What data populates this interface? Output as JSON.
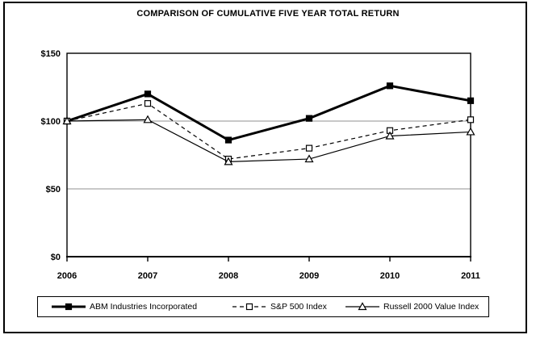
{
  "chart_data": {
    "type": "line",
    "title": "COMPARISON OF CUMULATIVE FIVE YEAR TOTAL RETURN",
    "x_labels": [
      "2006",
      "2007",
      "2008",
      "2009",
      "2010",
      "2011"
    ],
    "y_ticks": [
      0,
      50,
      100,
      150
    ],
    "y_tick_labels": [
      "$0",
      "$50",
      "$100",
      "$150"
    ],
    "ylim": [
      0,
      150
    ],
    "grid": "horizontal",
    "legend_position": "bottom",
    "series": [
      {
        "name": "ABM Industries Incorporated",
        "line": "thick-solid",
        "marker": "filled-square",
        "values": [
          100,
          120,
          86,
          102,
          126,
          115
        ]
      },
      {
        "name": "S&P 500 Index",
        "line": "dashed",
        "marker": "open-square",
        "values": [
          100,
          113,
          72,
          80,
          93,
          101
        ]
      },
      {
        "name": "Russell 2000 Value Index",
        "line": "thin-solid",
        "marker": "open-triangle",
        "values": [
          100,
          101,
          70,
          72,
          89,
          92
        ]
      }
    ],
    "colors": {
      "line": "#000000",
      "gridline": "#a6a6a6",
      "background": "#ffffff"
    }
  }
}
